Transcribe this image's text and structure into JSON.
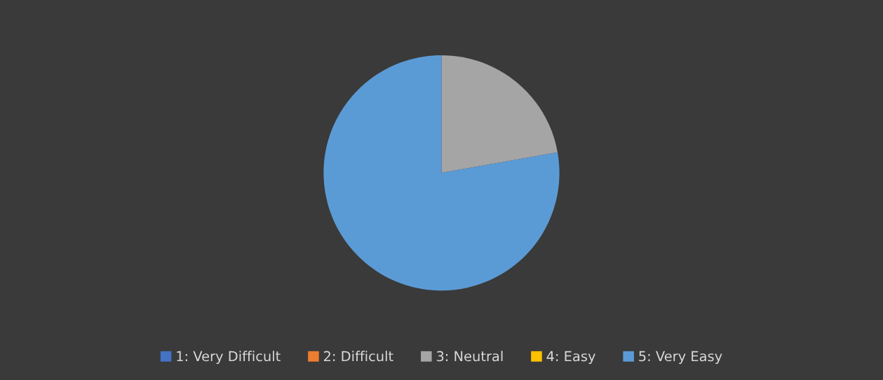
{
  "chart_data": {
    "type": "pie",
    "categories": [
      "1: Very Difficult",
      "2: Difficult",
      "3: Neutral",
      "4: Easy",
      "5: Very Easy"
    ],
    "values": [
      0,
      0,
      22.2,
      0,
      77.8
    ],
    "colors": [
      "#4472c4",
      "#ed7d31",
      "#a5a5a5",
      "#ffc000",
      "#5b9bd5"
    ],
    "legend": "bottom"
  }
}
